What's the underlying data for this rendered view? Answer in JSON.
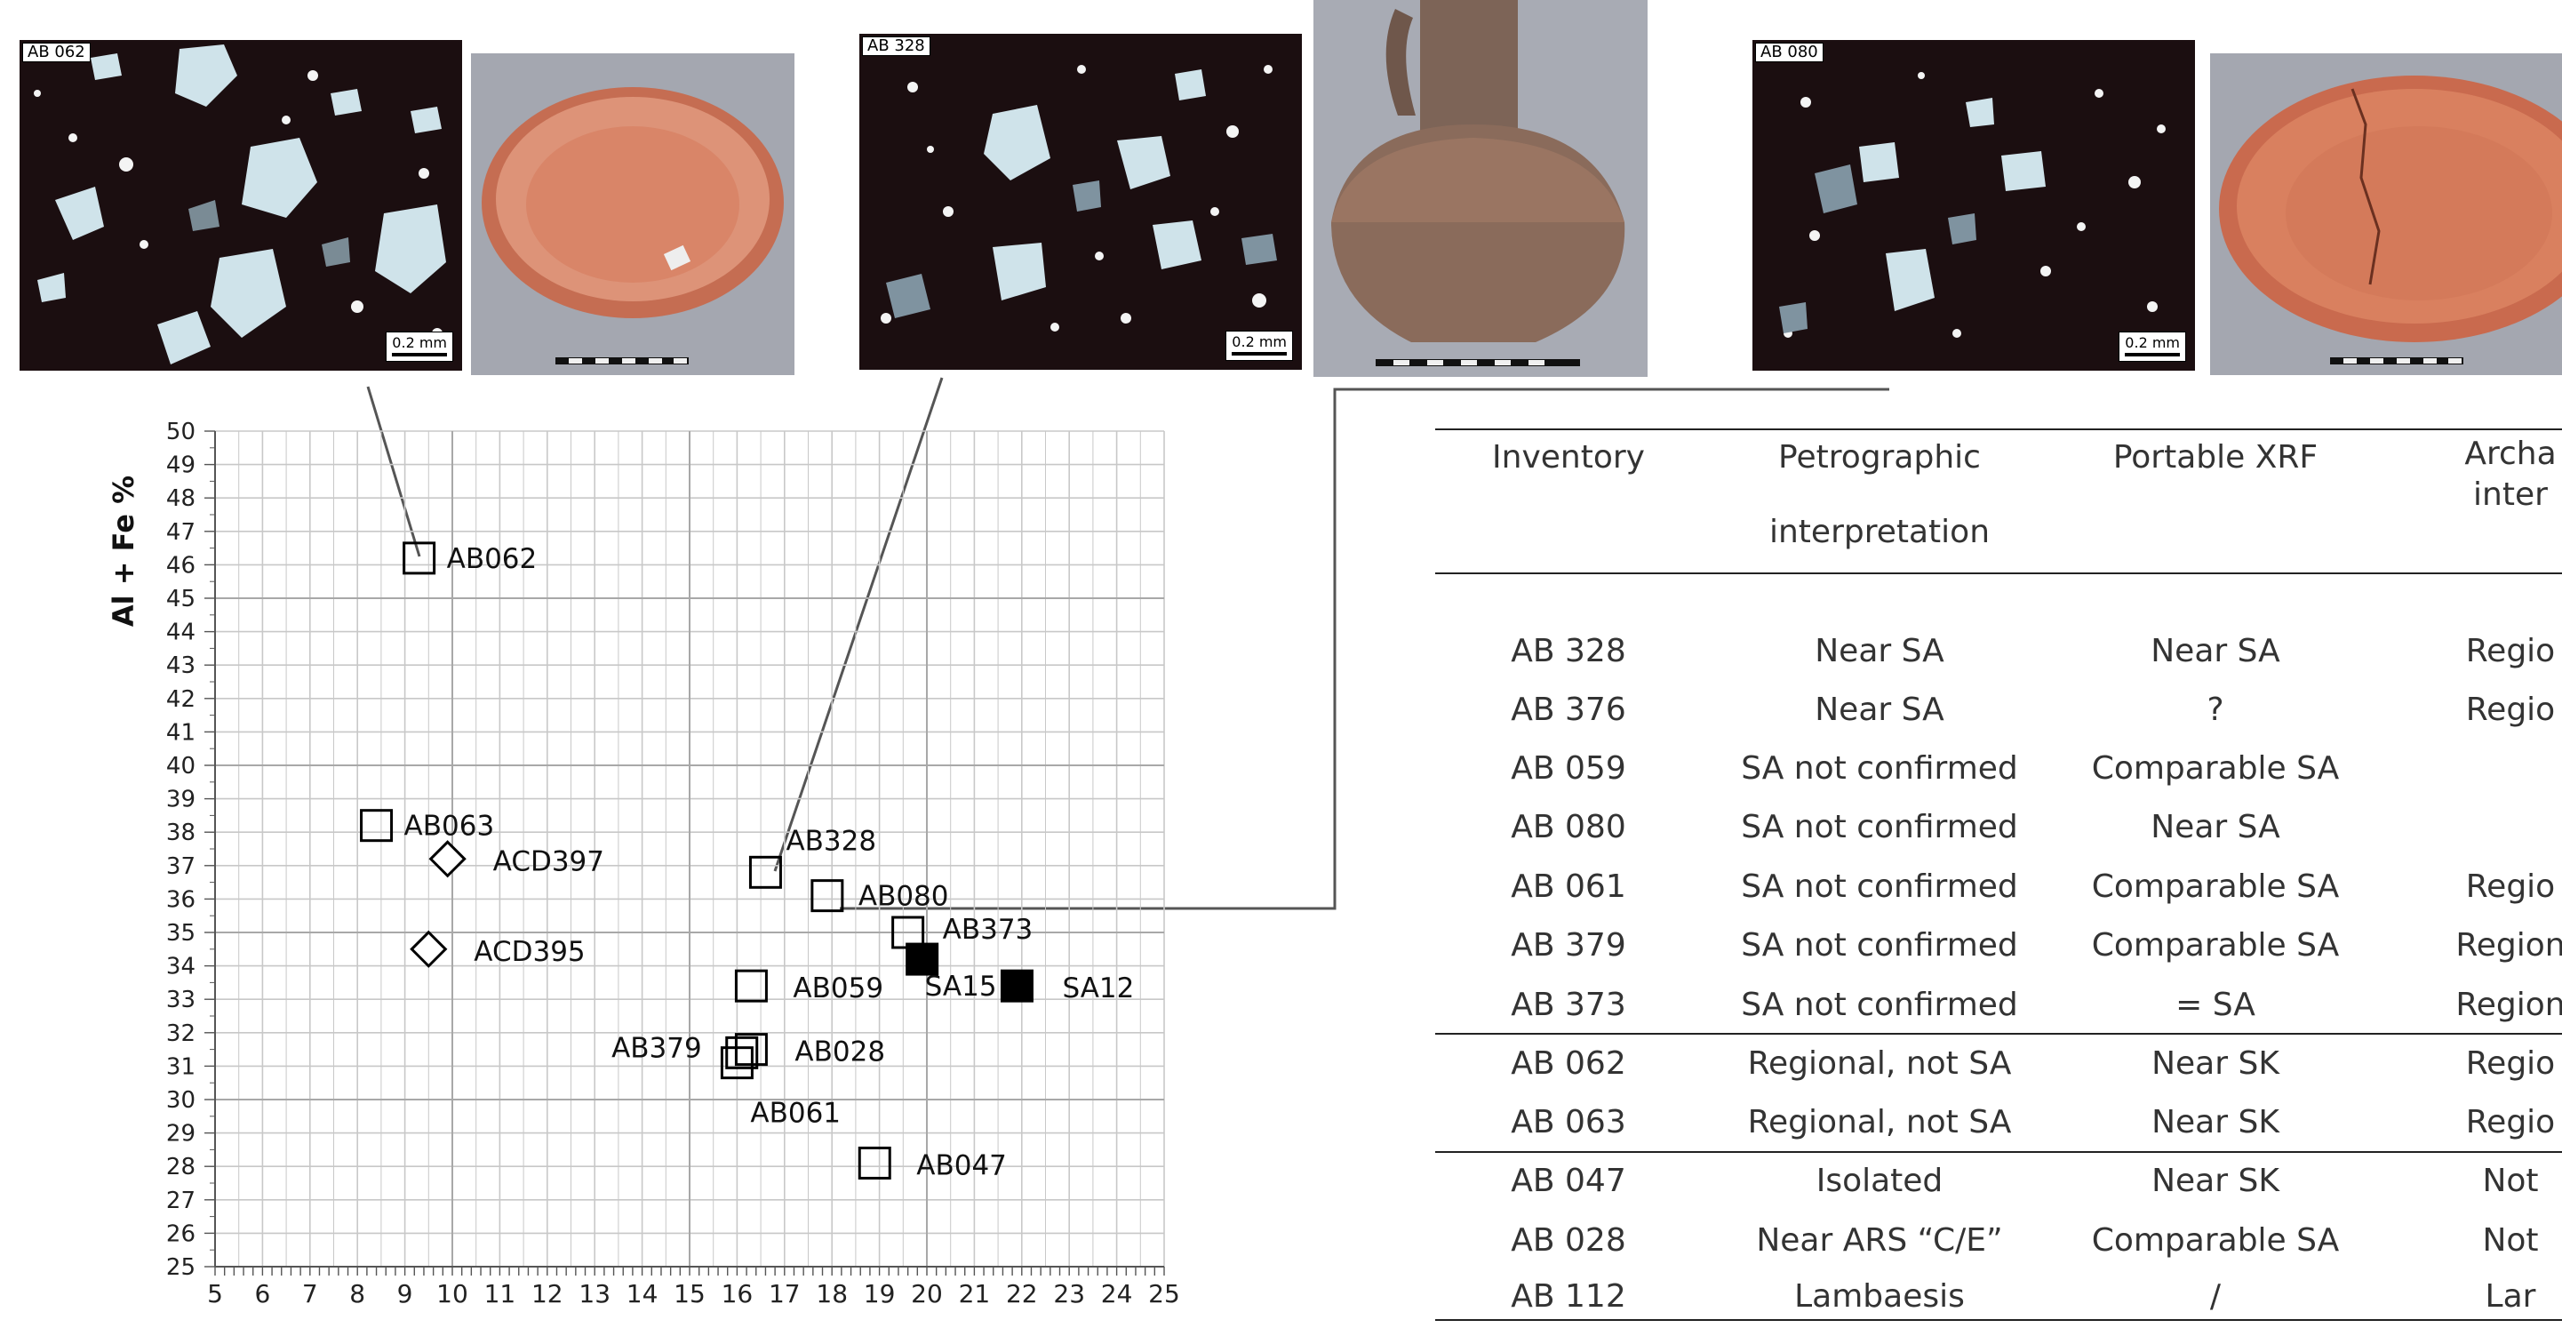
{
  "panels": [
    {
      "sample_tag": "AB 062",
      "scale_label": "0.2 mm"
    },
    {
      "sample_tag": "AB 328",
      "scale_label": "0.2 mm"
    },
    {
      "sample_tag": "AB 080",
      "scale_label": "0.2 mm"
    }
  ],
  "colors": {
    "grid": "#c8c8c8",
    "marker": "#000000",
    "rule": "#222222",
    "micro_bg": "#1b0e10",
    "photo_bg": "#a4a7b0",
    "ceramic": "#cf7a5e"
  },
  "chart_data": {
    "type": "scatter",
    "ylabel": "Al + Fe %",
    "xlabel": "",
    "xlim": [
      5,
      25
    ],
    "ylim": [
      25,
      50
    ],
    "xticks": [
      5,
      6,
      7,
      8,
      9,
      10,
      11,
      12,
      13,
      14,
      15,
      16,
      17,
      18,
      19,
      20,
      21,
      22,
      23,
      24,
      25
    ],
    "yticks": [
      25,
      26,
      27,
      28,
      29,
      30,
      31,
      32,
      33,
      34,
      35,
      36,
      37,
      38,
      39,
      40,
      41,
      42,
      43,
      44,
      45,
      46,
      47,
      48,
      49,
      50
    ],
    "grid": true,
    "points": [
      {
        "label": "AB062",
        "x": 9.3,
        "y": 46.2,
        "marker": "square-open"
      },
      {
        "label": "AB063",
        "x": 8.4,
        "y": 38.2,
        "marker": "square-open"
      },
      {
        "label": "ACD397",
        "x": 9.9,
        "y": 37.2,
        "marker": "diamond-open"
      },
      {
        "label": "ACD395",
        "x": 9.5,
        "y": 34.5,
        "marker": "diamond-open"
      },
      {
        "label": "AB328",
        "x": 16.6,
        "y": 36.8,
        "marker": "square-open"
      },
      {
        "label": "AB080",
        "x": 17.9,
        "y": 36.1,
        "marker": "square-open"
      },
      {
        "label": "AB373",
        "x": 19.6,
        "y": 35.0,
        "marker": "square-open"
      },
      {
        "label": "SA15",
        "x": 19.9,
        "y": 34.2,
        "marker": "square-filled"
      },
      {
        "label": "SA12",
        "x": 21.9,
        "y": 33.4,
        "marker": "square-filled"
      },
      {
        "label": "AB059",
        "x": 16.3,
        "y": 33.4,
        "marker": "square-open"
      },
      {
        "label": "AB028",
        "x": 16.3,
        "y": 31.5,
        "marker": "square-open"
      },
      {
        "label": "AB379",
        "x": 16.1,
        "y": 31.4,
        "marker": "square-open"
      },
      {
        "label": "AB061",
        "x": 16.0,
        "y": 31.1,
        "marker": "square-open"
      },
      {
        "label": "AB047",
        "x": 18.9,
        "y": 28.1,
        "marker": "square-open"
      }
    ]
  },
  "table": {
    "headers": [
      {
        "line1": "Inventory",
        "line2": ""
      },
      {
        "line1": "Petrographic",
        "line2": "interpretation"
      },
      {
        "line1": "Portable XRF",
        "line2": ""
      },
      {
        "line1": "Archa",
        "line2": "inter"
      }
    ],
    "rows": [
      [
        "AB 328",
        "Near SA",
        "Near SA",
        "Regio"
      ],
      [
        "AB 376",
        "Near SA",
        "?",
        "Regio"
      ],
      [
        "AB 059",
        "SA not confirmed",
        "Comparable SA",
        ""
      ],
      [
        "AB 080",
        "SA not confirmed",
        "Near SA",
        ""
      ],
      [
        "AB 061",
        "SA not confirmed",
        "Comparable SA",
        "Regio"
      ],
      [
        "AB 379",
        "SA not confirmed",
        "Comparable SA",
        "Region"
      ],
      [
        "AB 373",
        "SA not confirmed",
        "= SA",
        "Region"
      ],
      [
        "AB 062",
        "Regional, not SA",
        "Near SK",
        "Regio"
      ],
      [
        "AB 063",
        "Regional, not SA",
        "Near SK",
        "Regio"
      ],
      [
        "AB 047",
        "Isolated",
        "Near SK",
        "Not"
      ],
      [
        "AB 028",
        "Near ARS “C/E”",
        "Comparable SA",
        "Not"
      ],
      [
        "AB 112",
        "Lambaesis",
        "/",
        "Lar"
      ]
    ]
  }
}
